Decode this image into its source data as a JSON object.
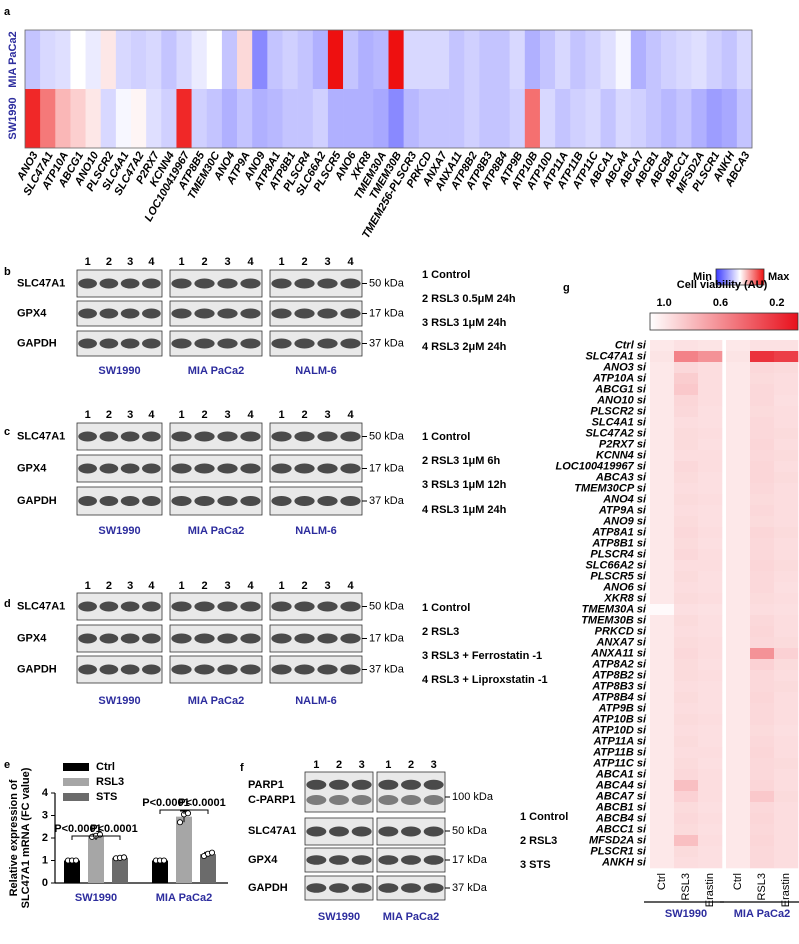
{
  "panel_labels": [
    "a",
    "b",
    "c",
    "d",
    "e",
    "f",
    "g"
  ],
  "chart_data": [
    {
      "type": "heatmap",
      "categories": [
        "ANO3",
        "SLC47A1",
        "ATP10A",
        "ABCG1",
        "ANO10",
        "PLSCR2",
        "SLC4A1",
        "SLC47A2",
        "P2RX7",
        "KCNN4",
        "LOC100419967",
        "ATP8B5",
        "TMEM30C",
        "ANO4",
        "ATP9A",
        "ANO9",
        "ATP8A1",
        "ATP8B1",
        "PLSCR4",
        "SLC66A2",
        "PLSCR5",
        "ANO6",
        "XKR8",
        "TMEM30A",
        "TMEM30B",
        "TMEM256-PLSCR3",
        "PRKCD",
        "ANXA7",
        "ANXA11",
        "ATP8B2",
        "ATP8B3",
        "ATP8B4",
        "ATP9B",
        "ATP10B",
        "ATP10D",
        "ATP11A",
        "ATP11B",
        "ATP11C",
        "ABCA1",
        "ABCA4",
        "ABCA7",
        "ABCB1",
        "ABCB4",
        "ABCC1",
        "MFSD2A",
        "PLSCR1",
        "ANKH",
        "ABCA3"
      ],
      "rows": [
        "MIA PaCa2",
        "SW1990"
      ],
      "values": [
        [
          0.35,
          0.4,
          0.42,
          0.5,
          0.45,
          0.55,
          0.4,
          0.38,
          0.4,
          0.35,
          0.4,
          0.45,
          0.5,
          0.35,
          0.58,
          0.2,
          0.35,
          0.38,
          0.35,
          0.3,
          1.0,
          0.35,
          0.3,
          0.32,
          1.0,
          0.4,
          0.4,
          0.4,
          0.35,
          0.38,
          0.35,
          0.35,
          0.4,
          0.3,
          0.35,
          0.4,
          0.35,
          0.38,
          0.42,
          0.48,
          0.3,
          0.35,
          0.38,
          0.4,
          0.42,
          0.38,
          0.35,
          0.4
        ],
        [
          0.95,
          0.78,
          0.65,
          0.6,
          0.55,
          0.4,
          0.48,
          0.52,
          0.42,
          0.38,
          0.95,
          0.38,
          0.35,
          0.3,
          0.35,
          0.3,
          0.32,
          0.35,
          0.35,
          0.38,
          0.3,
          0.3,
          0.3,
          0.28,
          0.2,
          0.32,
          0.35,
          0.35,
          0.35,
          0.38,
          0.35,
          0.35,
          0.38,
          0.8,
          0.4,
          0.35,
          0.38,
          0.4,
          0.35,
          0.4,
          0.38,
          0.35,
          0.32,
          0.35,
          0.3,
          0.25,
          0.28,
          0.35
        ]
      ],
      "clim": [
        0,
        1
      ],
      "colors": [
        "#3a3aff",
        "#ffffff",
        "#ee1010"
      ],
      "legend_labels": [
        "Min",
        "Max"
      ]
    },
    {
      "type": "bar",
      "categories": [
        "SW1990",
        "MIA PaCa2"
      ],
      "series": [
        {
          "name": "Ctrl",
          "color": "#000000",
          "values": [
            1.0,
            1.0
          ],
          "errors": [
            0.03,
            0.03
          ],
          "points": [
            [
              1.0,
              1.0,
              1.0
            ],
            [
              1.0,
              1.0,
              1.0
            ]
          ]
        },
        {
          "name": "RSL3",
          "color": "#a6a6a6",
          "values": [
            2.1,
            2.95
          ],
          "errors": [
            0.07,
            0.25
          ],
          "points": [
            [
              2.05,
              2.1,
              2.15
            ],
            [
              2.7,
              3.05,
              3.1
            ]
          ]
        },
        {
          "name": "STS",
          "color": "#6b6b6b",
          "values": [
            1.12,
            1.28
          ],
          "errors": [
            0.02,
            0.08
          ],
          "points": [
            [
              1.1,
              1.12,
              1.14
            ],
            [
              1.2,
              1.3,
              1.35
            ]
          ]
        }
      ],
      "ylim": [
        0,
        4
      ],
      "yticks": [
        0,
        1,
        2,
        3,
        4
      ],
      "ylabel": [
        "Relative expression of",
        "SLC47A1 mRNA (FC value)"
      ],
      "annotations": [
        "P<0.0001",
        "P<0.0001",
        "P<0.0001",
        "P<0.0001"
      ]
    },
    {
      "type": "heatmap",
      "title": "Cell viability (AU)",
      "rows": [
        "Ctrl si",
        "SLC47A1 si",
        "ANO3 si",
        "ATP10A si",
        "ABCG1 si",
        "ANO10 si",
        "PLSCR2 si",
        "SLC4A1 si",
        "SLC47A2 si",
        "P2RX7 si",
        "KCNN4 si",
        "LOC100419967 si",
        "ABCA3 si",
        "TMEM30CP si",
        "ANO4 si",
        "ATP9A si",
        "ANO9 si",
        "ATP8A1 si",
        "ATP8B1 si",
        "PLSCR4 si",
        "SLC66A2 si",
        "PLSCR5 si",
        "ANO6 si",
        "XKR8 si",
        "TMEM30A si",
        "TMEM30B si",
        "PRKCD si",
        "ANXA7 si",
        "ANXA11 si",
        "ATP8A2 si",
        "ATP8B2 si",
        "ATP8B3 si",
        "ATP8B4 si",
        "ATP9B si",
        "ATP10B si",
        "ATP10D si",
        "ATP11A si",
        "ATP11B si",
        "ATP11C si",
        "ABCA1 si",
        "ABCA4 si",
        "ABCA7 si",
        "ABCB1 si",
        "ABCB4 si",
        "ABCC1 si",
        "MFSD2A si",
        "PLSCR1 si",
        "ANKH si"
      ],
      "columns": [
        "Ctrl",
        "RSL3",
        "Erastin",
        "Ctrl",
        "RSL3",
        "Erastin"
      ],
      "groups": [
        "SW1990",
        "MIA PaCa2"
      ],
      "values": [
        [
          1.0,
          0.97,
          0.98,
          1.0,
          0.97,
          0.97
        ],
        [
          0.98,
          0.55,
          0.62,
          0.98,
          0.2,
          0.25
        ],
        [
          1.0,
          0.93,
          0.95,
          1.0,
          0.93,
          0.94
        ],
        [
          1.0,
          0.88,
          0.95,
          1.0,
          0.94,
          0.95
        ],
        [
          1.0,
          0.86,
          0.95,
          1.0,
          0.93,
          0.95
        ],
        [
          1.0,
          0.92,
          0.95,
          1.0,
          0.93,
          0.96
        ],
        [
          1.0,
          0.93,
          0.96,
          1.0,
          0.94,
          0.95
        ],
        [
          1.0,
          0.95,
          0.96,
          1.0,
          0.93,
          0.95
        ],
        [
          1.0,
          0.94,
          0.95,
          1.0,
          0.93,
          0.94
        ],
        [
          1.0,
          0.94,
          0.96,
          1.0,
          0.92,
          0.95
        ],
        [
          1.0,
          0.95,
          0.95,
          1.0,
          0.93,
          0.94
        ],
        [
          1.0,
          0.93,
          0.95,
          1.0,
          0.92,
          0.95
        ],
        [
          1.0,
          0.94,
          0.96,
          1.0,
          0.92,
          0.94
        ],
        [
          1.0,
          0.95,
          0.96,
          1.0,
          0.93,
          0.95
        ],
        [
          1.0,
          0.94,
          0.95,
          1.0,
          0.94,
          0.95
        ],
        [
          1.0,
          0.95,
          0.96,
          1.0,
          0.93,
          0.95
        ],
        [
          1.0,
          0.94,
          0.96,
          1.0,
          0.94,
          0.95
        ],
        [
          1.0,
          0.93,
          0.95,
          1.0,
          0.92,
          0.94
        ],
        [
          1.0,
          0.94,
          0.96,
          1.0,
          0.93,
          0.95
        ],
        [
          1.0,
          0.93,
          0.95,
          1.0,
          0.93,
          0.95
        ],
        [
          1.0,
          0.95,
          0.95,
          1.0,
          0.92,
          0.94
        ],
        [
          1.0,
          0.94,
          0.96,
          1.0,
          0.93,
          0.95
        ],
        [
          1.0,
          0.95,
          0.96,
          1.0,
          0.93,
          0.96
        ],
        [
          1.0,
          0.94,
          0.95,
          1.0,
          0.94,
          0.95
        ],
        [
          1.08,
          0.96,
          0.97,
          1.0,
          0.95,
          0.96
        ],
        [
          1.0,
          0.94,
          0.96,
          1.0,
          0.93,
          0.95
        ],
        [
          1.0,
          0.95,
          0.96,
          1.0,
          0.92,
          0.95
        ],
        [
          1.0,
          0.94,
          0.95,
          1.0,
          0.93,
          0.94
        ],
        [
          1.0,
          0.93,
          0.95,
          1.0,
          0.62,
          0.9
        ],
        [
          1.0,
          0.94,
          0.96,
          1.0,
          0.9,
          0.94
        ],
        [
          1.0,
          0.94,
          0.95,
          1.0,
          0.93,
          0.95
        ],
        [
          1.0,
          0.95,
          0.96,
          1.0,
          0.93,
          0.94
        ],
        [
          1.0,
          0.94,
          0.96,
          1.0,
          0.92,
          0.95
        ],
        [
          1.0,
          0.95,
          0.96,
          1.0,
          0.93,
          0.95
        ],
        [
          1.0,
          0.94,
          0.95,
          1.0,
          0.93,
          0.95
        ],
        [
          1.0,
          0.95,
          0.96,
          1.0,
          0.94,
          0.96
        ],
        [
          1.0,
          0.94,
          0.96,
          1.0,
          0.93,
          0.95
        ],
        [
          1.0,
          0.95,
          0.95,
          1.0,
          0.92,
          0.95
        ],
        [
          1.0,
          0.94,
          0.96,
          1.0,
          0.93,
          0.94
        ],
        [
          1.0,
          0.93,
          0.95,
          1.0,
          0.93,
          0.95
        ],
        [
          1.0,
          0.82,
          0.95,
          1.0,
          0.92,
          0.95
        ],
        [
          1.0,
          0.9,
          0.95,
          1.0,
          0.86,
          0.94
        ],
        [
          1.0,
          0.94,
          0.96,
          1.0,
          0.93,
          0.95
        ],
        [
          1.0,
          0.93,
          0.95,
          1.0,
          0.92,
          0.95
        ],
        [
          1.0,
          0.94,
          0.96,
          1.0,
          0.93,
          0.95
        ],
        [
          1.0,
          0.82,
          0.95,
          1.0,
          0.92,
          0.95
        ],
        [
          1.0,
          0.94,
          0.96,
          1.0,
          0.93,
          0.95
        ],
        [
          1.0,
          0.95,
          0.96,
          1.0,
          0.93,
          0.95
        ]
      ],
      "clim": [
        1.1,
        0.05
      ],
      "cticks": [
        {
          "value": 1.0,
          "label": "1.0"
        },
        0.6,
        0.2
      ],
      "colors": [
        "#ffffff",
        "#e8101c"
      ]
    }
  ],
  "blots": {
    "b": {
      "lanes": [
        "1",
        "2",
        "3",
        "4"
      ],
      "bands": [
        "SLC47A1",
        "GPX4",
        "GAPDH"
      ],
      "markers": [
        "50 kDa",
        "17 kDa",
        "37 kDa"
      ],
      "cell_lines": [
        "SW1990",
        "MIA PaCa2",
        "NALM-6"
      ],
      "legend": [
        "1 Control",
        "2 RSL3 0.5μM 24h",
        "3 RSL3 1μM 24h",
        "4 RSL3 2μM 24h"
      ]
    },
    "c": {
      "lanes": [
        "1",
        "2",
        "3",
        "4"
      ],
      "bands": [
        "SLC47A1",
        "GPX4",
        "GAPDH"
      ],
      "markers": [
        "50 kDa",
        "17 kDa",
        "37 kDa"
      ],
      "cell_lines": [
        "SW1990",
        "MIA PaCa2",
        "NALM-6"
      ],
      "legend": [
        "1 Control",
        "2 RSL3 1μM 6h",
        "3 RSL3 1μM 12h",
        "4 RSL3 1μM 24h"
      ]
    },
    "d": {
      "lanes": [
        "1",
        "2",
        "3",
        "4"
      ],
      "bands": [
        "SLC47A1",
        "GPX4",
        "GAPDH"
      ],
      "markers": [
        "50 kDa",
        "17 kDa",
        "37 kDa"
      ],
      "cell_lines": [
        "SW1990",
        "MIA PaCa2",
        "NALM-6"
      ],
      "legend": [
        "1 Control",
        "2 RSL3",
        "3 RSL3  + Ferrostatin -1",
        "4 RSL3 + Liproxstatin -1"
      ]
    },
    "f": {
      "lanes": [
        "1",
        "2",
        "3"
      ],
      "bands": [
        "PARP1",
        "C-PARP1",
        "SLC47A1",
        "GPX4",
        "GAPDH"
      ],
      "markers": [
        "100 kDa",
        "50 kDa",
        "17 kDa",
        "37 kDa"
      ],
      "cell_lines": [
        "SW1990",
        "MIA PaCa2"
      ],
      "legend": [
        "1 Control",
        "2 RSL3",
        "3 STS"
      ]
    }
  }
}
